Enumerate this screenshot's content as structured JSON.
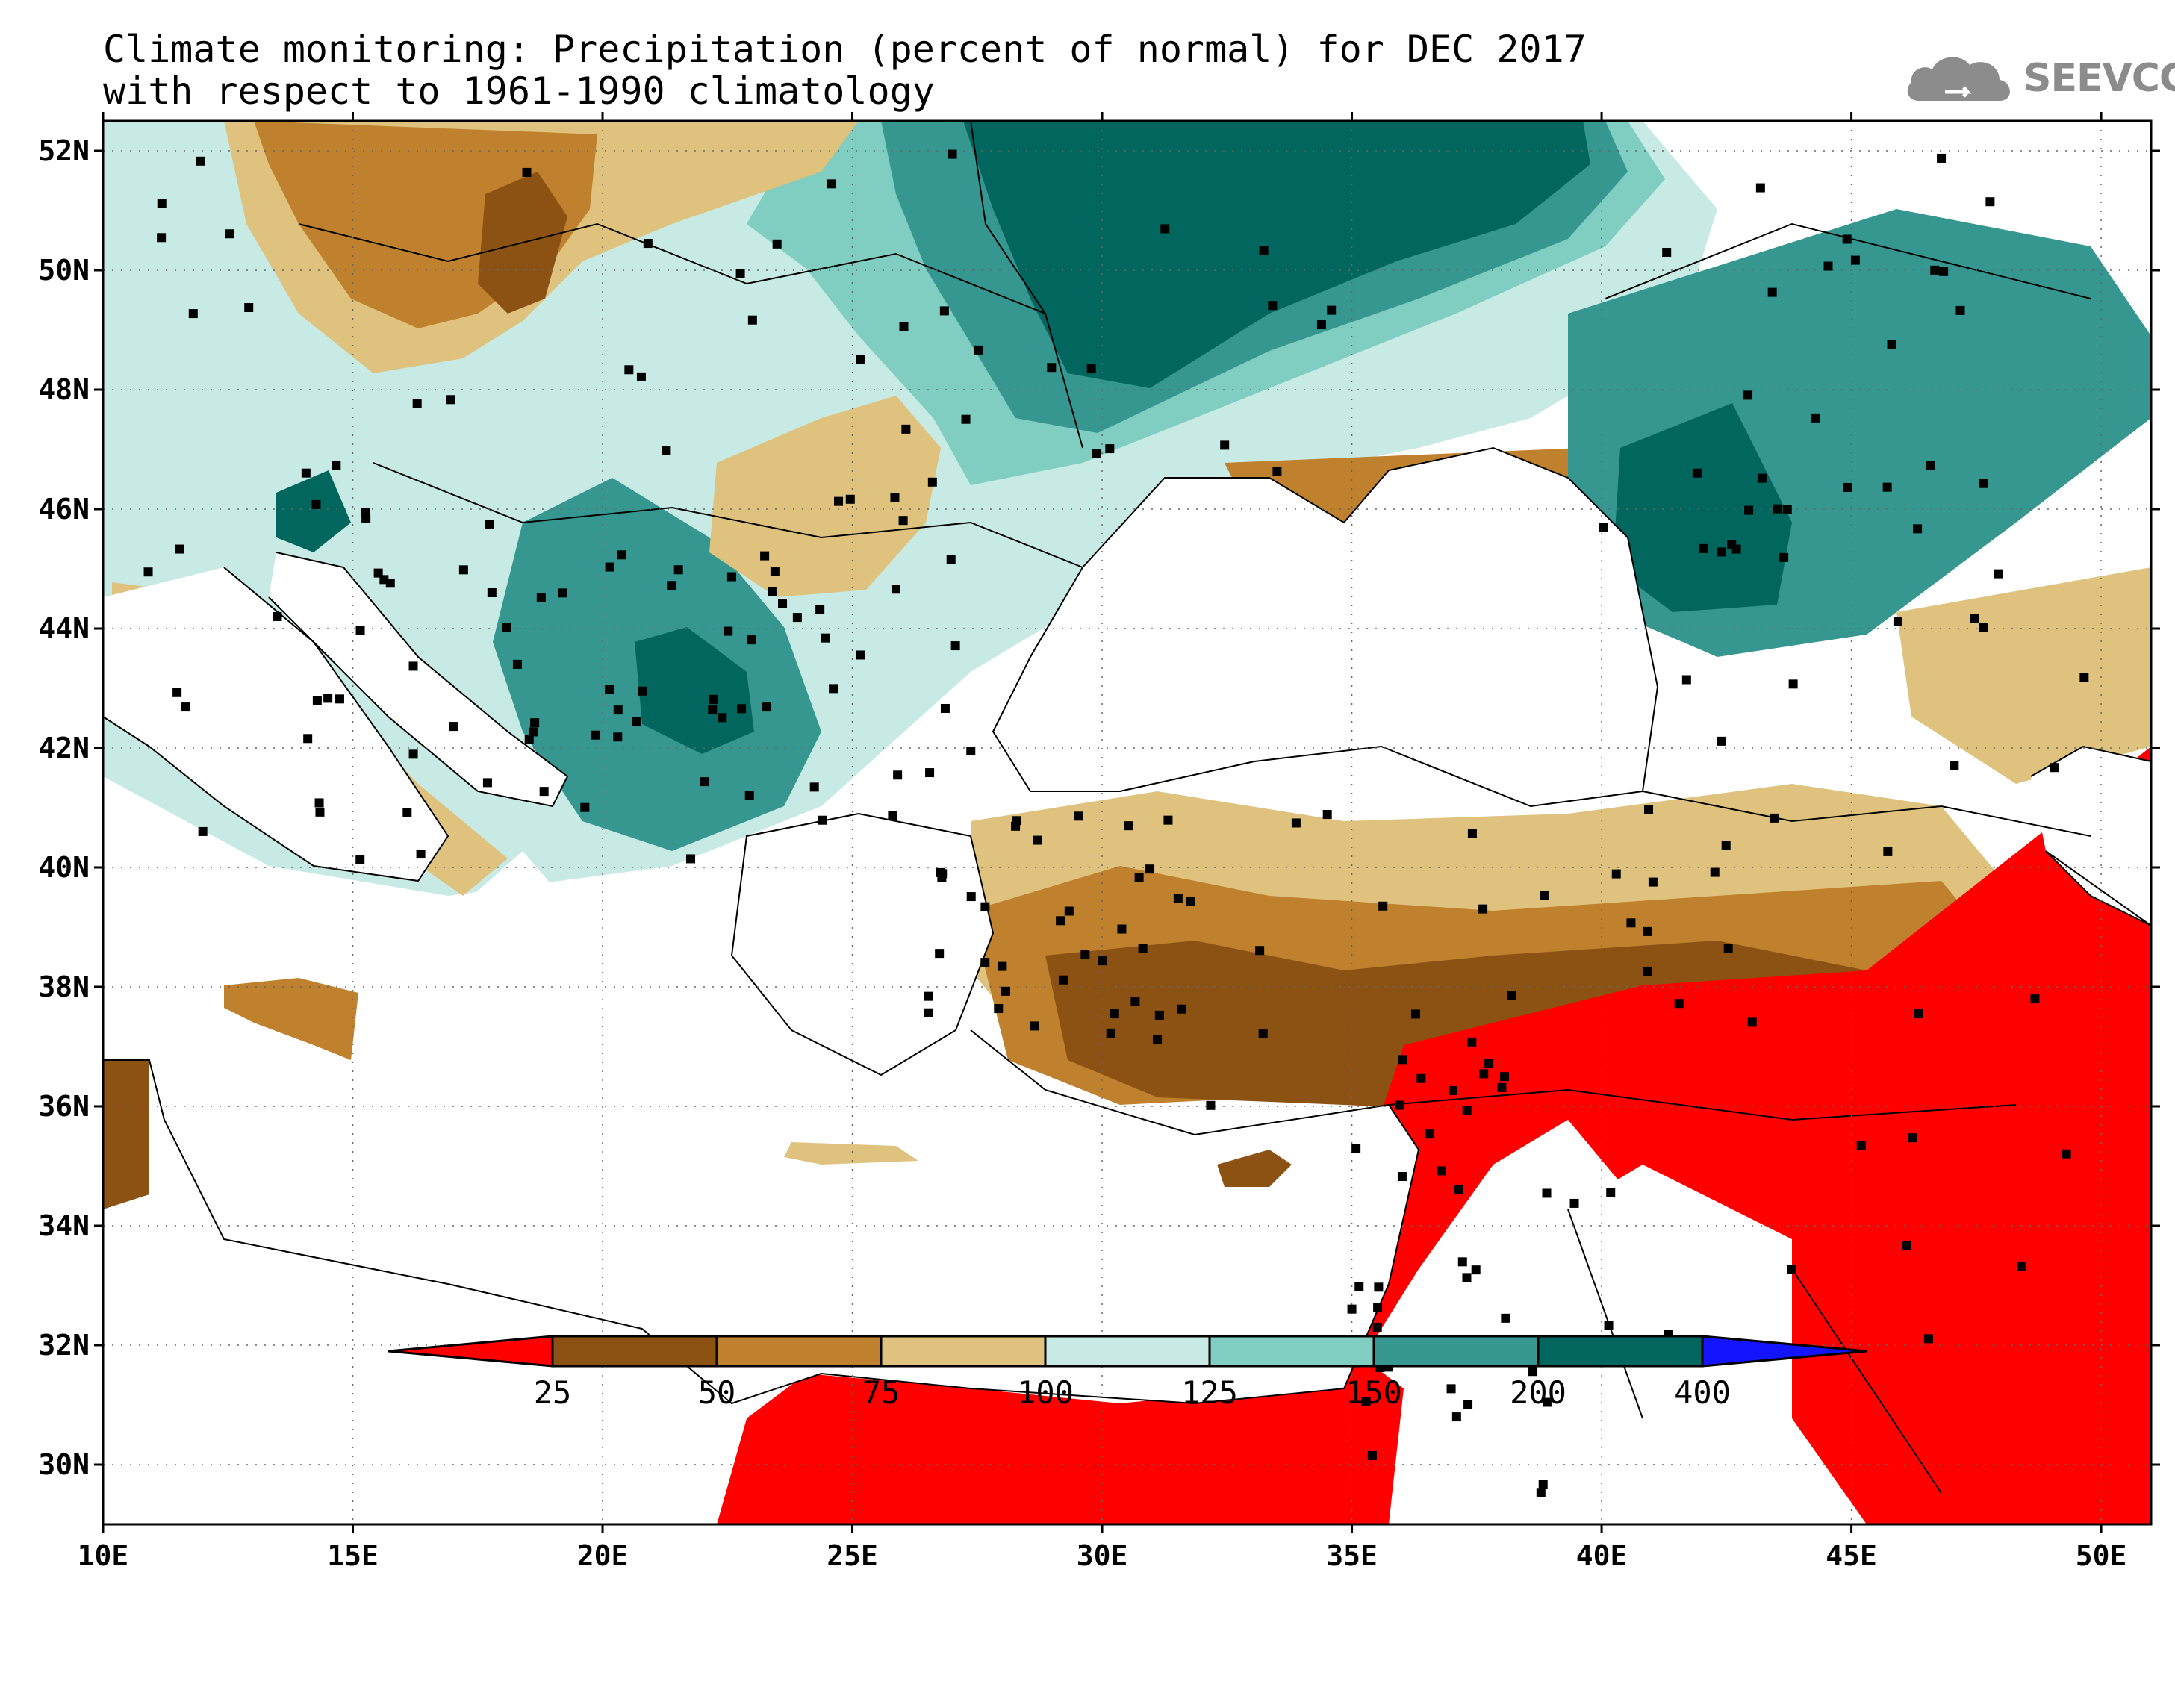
{
  "title_line1": "Climate monitoring: Precipitation (percent of normal) for DEC 2017",
  "title_line2": "with respect to 1961-1990 climatology",
  "logo_text": "SEEVCCC",
  "logo_icon": "cloud-icon",
  "map": {
    "projection": "latitude-longitude",
    "lon_range": [
      10,
      51
    ],
    "lat_range": [
      29,
      52.5
    ],
    "lat_ticks": [
      "52N",
      "50N",
      "48N",
      "46N",
      "44N",
      "42N",
      "40N",
      "38N",
      "36N",
      "34N",
      "32N",
      "30N"
    ],
    "lon_ticks": [
      "10E",
      "15E",
      "20E",
      "25E",
      "30E",
      "35E",
      "40E",
      "45E",
      "50E"
    ],
    "grid": "dotted",
    "station_markers": "black squares"
  },
  "legend": {
    "bounds": [
      "25",
      "50",
      "75",
      "100",
      "125",
      "150",
      "200",
      "400"
    ],
    "colors": [
      "#ff0000",
      "#8c5214",
      "#bf812d",
      "#dfc27d",
      "#c7eae5",
      "#80cdc1",
      "#35978f",
      "#01665e",
      "#1414ff"
    ],
    "low_end_arrow_color": "#ff0000",
    "high_end_arrow_color": "#1414ff"
  }
}
